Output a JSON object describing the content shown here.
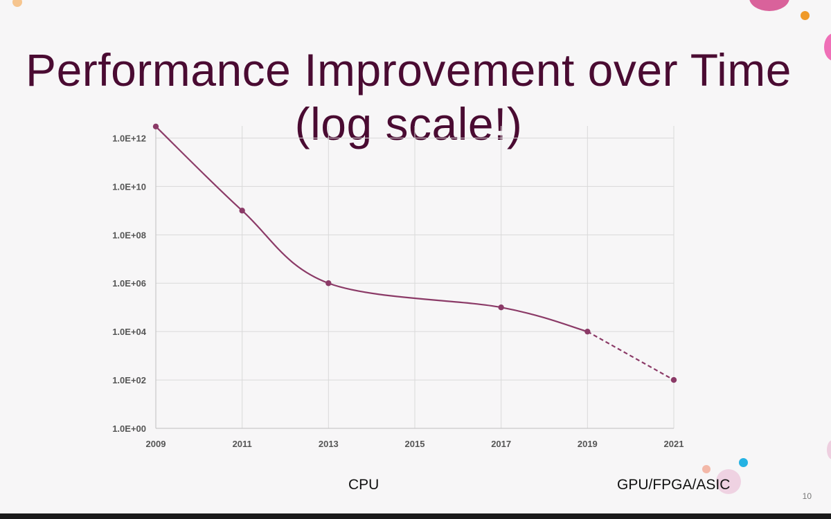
{
  "slide": {
    "title_line1": "Performance Improvement over Time",
    "title_line2": "(log scale!)",
    "caption_left": "CPU",
    "caption_right": "GPU/FPGA/ASIC",
    "page_number": "10"
  },
  "colors": {
    "title": "#4a0b32",
    "series": "#8b3a67",
    "grid": "#d9d9d9"
  },
  "chart_data": {
    "type": "line",
    "title": "",
    "xlabel": "",
    "ylabel": "",
    "y_scale": "log10",
    "xlim": [
      2009,
      2021
    ],
    "ylim": [
      1,
      1000000000000
    ],
    "x_ticks": [
      "2009",
      "2011",
      "2013",
      "2015",
      "2017",
      "2019",
      "2021"
    ],
    "y_ticks": [
      "1.0E+00",
      "1.0E+02",
      "1.0E+04",
      "1.0E+06",
      "1.0E+08",
      "1.0E+10",
      "1.0E+12"
    ],
    "grid": true,
    "series": [
      {
        "points": [
          {
            "x": 2009,
            "y": 3000000000000
          },
          {
            "x": 2011,
            "y": 1000000000
          },
          {
            "x": 2013,
            "y": 1000000
          },
          {
            "x": 2017,
            "y": 100000
          },
          {
            "x": 2019,
            "y": 10000
          },
          {
            "x": 2021,
            "y": 100
          }
        ],
        "dashed_from_x": 2019
      }
    ]
  }
}
